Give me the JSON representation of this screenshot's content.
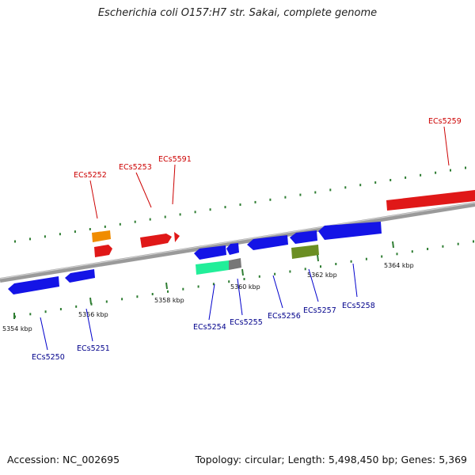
{
  "title": "Escherichia coli O157:H7 str. Sakai, complete genome",
  "footer": {
    "accession": "Accession: NC_002695",
    "topology": "Topology: circular; Length: 5,498,450 bp; Genes: 5,369"
  },
  "colors": {
    "forward_label": "#cc0000",
    "reverse_label": "#00008b",
    "backbone": "#888888",
    "tick": "#2e7d32"
  },
  "ticks": [
    "5354 kbp",
    "5356 kbp",
    "5358 kbp",
    "5360 kbp",
    "5362 kbp",
    "5364 kbp"
  ],
  "genes_forward": [
    "ECs5252",
    "ECs5253",
    "ECs5591",
    "ECs5259"
  ],
  "genes_reverse": [
    "ECs5250",
    "ECs5251",
    "ECs5254",
    "ECs5255",
    "ECs5256",
    "ECs5257",
    "ECs5258"
  ]
}
